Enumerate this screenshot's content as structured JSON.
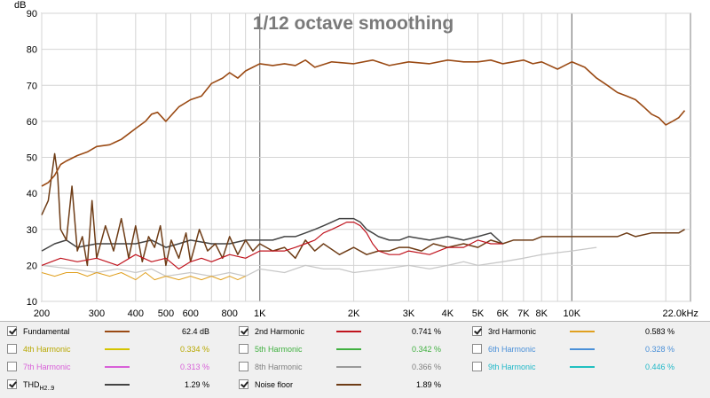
{
  "chart_data": {
    "type": "line",
    "title": "1/12 octave smoothing",
    "ylabel": "dB",
    "xscale": "log",
    "xlim": [
      200,
      24000
    ],
    "ylim": [
      10,
      90
    ],
    "grid": true,
    "yticks": [
      10,
      20,
      30,
      40,
      50,
      60,
      70,
      80,
      90
    ],
    "xticks": [
      {
        "v": 200,
        "label": "200"
      },
      {
        "v": 300,
        "label": "300"
      },
      {
        "v": 400,
        "label": "400"
      },
      {
        "v": 500,
        "label": "500"
      },
      {
        "v": 600,
        "label": "600"
      },
      {
        "v": 800,
        "label": "800"
      },
      {
        "v": 1000,
        "label": "1K"
      },
      {
        "v": 2000,
        "label": "2K"
      },
      {
        "v": 3000,
        "label": "3K"
      },
      {
        "v": 4000,
        "label": "4K"
      },
      {
        "v": 5000,
        "label": "5K"
      },
      {
        "v": 6000,
        "label": "6K"
      },
      {
        "v": 7000,
        "label": "7K"
      },
      {
        "v": 8000,
        "label": "8K"
      },
      {
        "v": 10000,
        "label": "10K"
      },
      {
        "v": 22000,
        "label": "22.0kHz"
      }
    ],
    "series": [
      {
        "name": "Fundamental",
        "color": "#9a4a14",
        "width": 1.6,
        "x": [
          200,
          210,
          220,
          230,
          240,
          260,
          280,
          300,
          330,
          360,
          400,
          430,
          450,
          470,
          500,
          550,
          600,
          650,
          700,
          760,
          800,
          850,
          900,
          950,
          1000,
          1100,
          1200,
          1300,
          1400,
          1500,
          1700,
          2000,
          2300,
          2600,
          3000,
          3500,
          4000,
          4500,
          5000,
          5500,
          6000,
          6500,
          7000,
          7500,
          8000,
          9000,
          10000,
          11000,
          12000,
          13000,
          14000,
          15000,
          16000,
          17000,
          18000,
          19000,
          20000,
          21000,
          22000,
          23000
        ],
        "y": [
          42,
          43,
          45,
          48,
          49,
          50.5,
          51.5,
          53,
          53.5,
          55,
          58,
          60,
          62,
          62.5,
          60,
          64,
          66,
          67,
          70.5,
          72,
          73.5,
          72,
          74,
          75,
          76,
          75.5,
          76,
          75.5,
          77,
          75,
          76.5,
          76,
          77,
          75.5,
          76.5,
          76,
          77,
          76.5,
          76.5,
          77,
          76,
          76.5,
          77,
          76,
          76.5,
          74.5,
          76.5,
          75,
          72,
          70,
          68,
          67,
          66,
          64,
          62,
          61,
          59,
          60,
          61,
          63
        ]
      },
      {
        "name": "2nd Harmonic",
        "color": "#c0141e",
        "width": 1.2,
        "x": [
          200,
          230,
          260,
          300,
          350,
          400,
          450,
          500,
          550,
          600,
          650,
          700,
          800,
          900,
          1000,
          1100,
          1200,
          1300,
          1400,
          1500,
          1600,
          1700,
          1800,
          1900,
          2000,
          2100,
          2200,
          2300,
          2400,
          2600,
          2800,
          3000,
          3500,
          4000,
          4500,
          5000,
          5500,
          6000
        ],
        "y": [
          20,
          22,
          21,
          22,
          20,
          23,
          21,
          22,
          19,
          21,
          22,
          21,
          23,
          22,
          24,
          24,
          24,
          25,
          26,
          27,
          29,
          30,
          31,
          32,
          32,
          31,
          29,
          26,
          24,
          23,
          23,
          24,
          23,
          25,
          25,
          27,
          26,
          26
        ]
      },
      {
        "name": "3rd Harmonic",
        "color": "#e0a020",
        "width": 1.0,
        "x": [
          200,
          220,
          240,
          260,
          280,
          300,
          330,
          360,
          400,
          430,
          460,
          500,
          550,
          600,
          650,
          700,
          750,
          800,
          850,
          900
        ],
        "y": [
          18,
          17,
          18,
          18,
          17,
          18,
          17,
          18,
          16,
          18,
          16,
          17,
          16,
          17,
          16,
          17,
          16,
          17,
          16,
          17
        ]
      },
      {
        "name": "Noise floor",
        "color": "#6e3c16",
        "width": 1.5,
        "x": [
          200,
          210,
          220,
          225,
          230,
          240,
          250,
          260,
          270,
          280,
          290,
          300,
          320,
          340,
          360,
          380,
          400,
          420,
          440,
          460,
          480,
          500,
          520,
          550,
          580,
          600,
          640,
          680,
          720,
          760,
          800,
          850,
          900,
          950,
          1000,
          1100,
          1200,
          1300,
          1400,
          1500,
          1600,
          1800,
          2000,
          2200,
          2400,
          2600,
          2800,
          3000,
          3300,
          3600,
          4000,
          4500,
          5000,
          5500,
          6000,
          6500,
          7000,
          7500,
          8000,
          9000,
          10000,
          11000,
          12000,
          13000,
          14000,
          15000,
          16000,
          18000,
          20000,
          22000,
          23000
        ],
        "y": [
          34,
          38,
          51,
          45,
          30,
          27,
          42,
          24,
          28,
          20,
          38,
          22,
          31,
          24,
          33,
          22,
          31,
          21,
          28,
          25,
          31,
          20,
          27,
          22,
          29,
          21,
          30,
          24,
          26,
          22,
          28,
          23,
          27,
          24,
          26,
          24,
          25,
          22,
          27,
          24,
          26,
          23,
          25,
          23,
          24,
          24,
          25,
          25,
          24,
          26,
          25,
          26,
          25,
          27,
          26,
          27,
          27,
          27,
          28,
          28,
          28,
          28,
          28,
          28,
          28,
          29,
          28,
          29,
          29,
          29,
          30
        ]
      },
      {
        "name": "THD H2..9",
        "color": "#444444",
        "width": 1.5,
        "x": [
          200,
          220,
          240,
          260,
          300,
          350,
          400,
          450,
          500,
          550,
          600,
          700,
          800,
          900,
          1000,
          1100,
          1200,
          1300,
          1400,
          1500,
          1600,
          1700,
          1800,
          1900,
          2000,
          2100,
          2200,
          2300,
          2400,
          2600,
          2800,
          3000,
          3500,
          4000,
          4500,
          5000,
          5500,
          6000
        ],
        "y": [
          24,
          26,
          27,
          25,
          26,
          26,
          26,
          27,
          25,
          26,
          27,
          26,
          26,
          27,
          27,
          27,
          28,
          28,
          29,
          30,
          31,
          32,
          33,
          33,
          33,
          32,
          30,
          29,
          28,
          27,
          27,
          28,
          27,
          28,
          27,
          28,
          29,
          26
        ]
      },
      {
        "name": "8th Harmonic",
        "color": "#c8c8c8",
        "width": 1.3,
        "x": [
          200,
          250,
          300,
          350,
          400,
          450,
          500,
          600,
          700,
          800,
          900,
          1000,
          1200,
          1400,
          1600,
          1800,
          2000,
          2500,
          3000,
          3500,
          4000,
          4500,
          5000,
          6000,
          7000,
          8000,
          10000,
          12000
        ],
        "y": [
          20,
          19,
          18,
          19,
          18,
          19,
          17,
          18,
          17,
          18,
          17,
          19,
          18,
          20,
          19,
          19,
          18,
          19,
          20,
          19,
          20,
          21,
          20,
          21,
          22,
          23,
          24,
          25
        ]
      }
    ]
  },
  "legend": {
    "rows": [
      [
        {
          "label": "Fundamental",
          "value": "62.4 dB",
          "checked": true,
          "color": "#9a4a14",
          "text_color": "#000000"
        },
        {
          "label": "2nd Harmonic",
          "value": "0.741 %",
          "checked": true,
          "color": "#c0141e",
          "text_color": "#000000"
        },
        {
          "label": "3rd Harmonic",
          "value": "0.583 %",
          "checked": true,
          "color": "#e0a020",
          "text_color": "#000000"
        }
      ],
      [
        {
          "label": "4th Harmonic",
          "value": "0.334 %",
          "checked": false,
          "color": "#d4c400",
          "text_color": "#b8a800"
        },
        {
          "label": "5th Harmonic",
          "value": "0.342 %",
          "checked": false,
          "color": "#40b040",
          "text_color": "#40b040"
        },
        {
          "label": "6th Harmonic",
          "value": "0.328 %",
          "checked": false,
          "color": "#4a90d8",
          "text_color": "#4a90d8"
        }
      ],
      [
        {
          "label": "7th Harmonic",
          "value": "0.313 %",
          "checked": false,
          "color": "#d860d8",
          "text_color": "#d860d8"
        },
        {
          "label": "8th Harmonic",
          "value": "0.366 %",
          "checked": false,
          "color": "#9a9a9a",
          "text_color": "#808080"
        },
        {
          "label": "9th Harmonic",
          "value": "0.446 %",
          "checked": false,
          "color": "#20c0c0",
          "text_color": "#20b8c8"
        }
      ],
      [
        {
          "label": "THD",
          "sub": "H2..9",
          "value": "1.29 %",
          "checked": true,
          "color": "#444444",
          "text_color": "#000000"
        },
        {
          "label": "Noise floor",
          "value": "1.89 %",
          "checked": true,
          "color": "#6e3c16",
          "text_color": "#000000"
        }
      ]
    ]
  }
}
